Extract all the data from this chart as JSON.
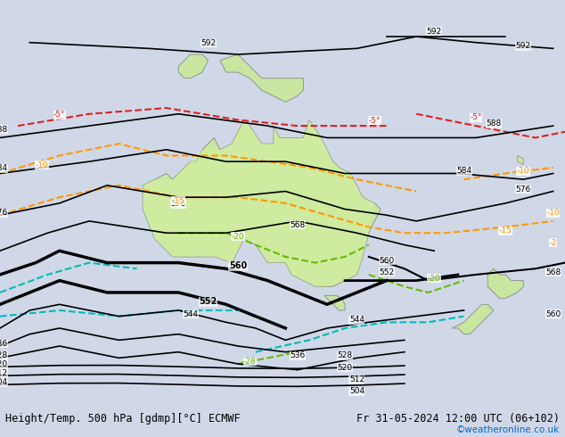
{
  "title_left": "Height/Temp. 500 hPa [gdmp][°C] ECMWF",
  "title_right": "Fr 31-05-2024 12:00 UTC (06+102)",
  "copyright": "©weatheronline.co.uk",
  "background_color": "#d0d8e8",
  "land_color": "#c8e6a0",
  "sea_color": "#d0d8e8",
  "title_fontsize": 9,
  "copyright_color": "#0066cc",
  "map_bounds": [
    90,
    185,
    -55,
    5
  ],
  "figsize": [
    6.34,
    4.9
  ],
  "dpi": 100
}
